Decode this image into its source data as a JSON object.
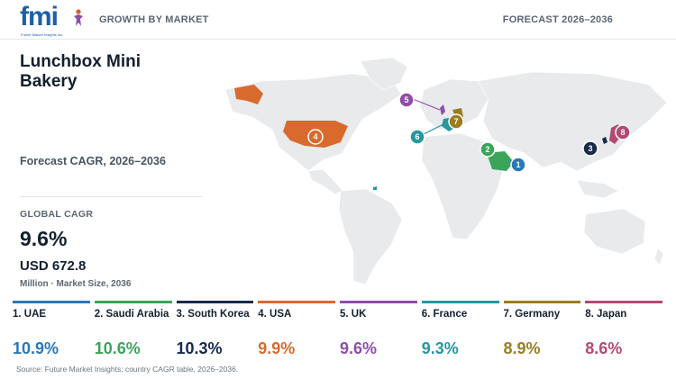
{
  "header": {
    "logo_text": "fmi",
    "logo_tagline": "Future Market Insights Inc.",
    "left_label": "GROWTH BY MARKET",
    "right_label": "FORECAST 2026–2036"
  },
  "title": "Lunchbox Mini Bakery",
  "subtitle": "Forecast CAGR, 2026–2036",
  "global": {
    "label": "GLOBAL CAGR",
    "cagr": "9.6%",
    "market_value": "USD 672.8",
    "market_caption": "Million · Market Size, 2036"
  },
  "countries": [
    {
      "rank": "1",
      "label": "1. UAE",
      "cagr": "10.9%",
      "color": "#2a78b8"
    },
    {
      "rank": "2",
      "label": "2. Saudi Arabia",
      "cagr": "10.6%",
      "color": "#3aa55a"
    },
    {
      "rank": "3",
      "label": "3. South Korea",
      "cagr": "10.3%",
      "color": "#172a4a"
    },
    {
      "rank": "4",
      "label": "4. USA",
      "cagr": "9.9%",
      "color": "#d96a2e"
    },
    {
      "rank": "5",
      "label": "5. UK",
      "cagr": "9.6%",
      "color": "#8e4ea6"
    },
    {
      "rank": "6",
      "label": "6. France",
      "cagr": "9.3%",
      "color": "#24989e"
    },
    {
      "rank": "7",
      "label": "7. Germany",
      "cagr": "8.9%",
      "color": "#9a7d1e"
    },
    {
      "rank": "8",
      "label": "8. Japan",
      "cagr": "8.6%",
      "color": "#b24a72"
    }
  ],
  "source": "Source: Future Market Insights; country CAGR table, 2026–2036."
}
